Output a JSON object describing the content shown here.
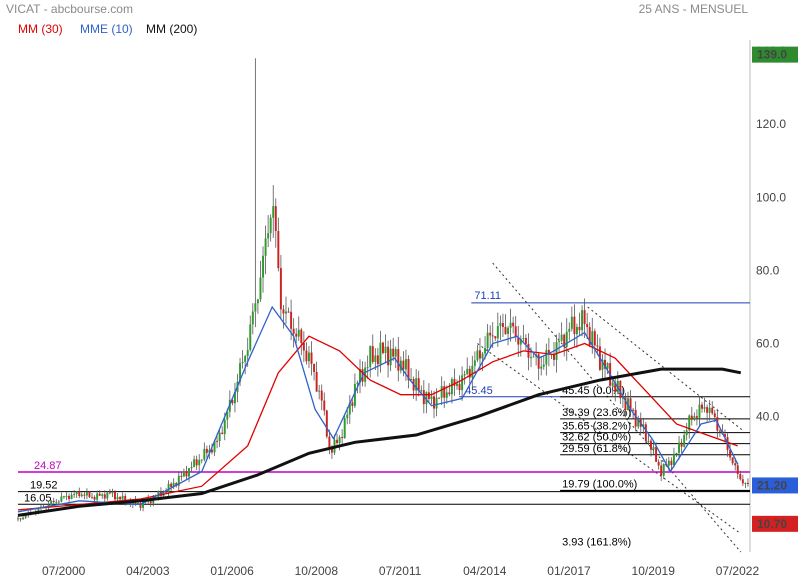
{
  "header": {
    "title_left": "VICAT - abcbourse.com",
    "title_right": "25 ANS - MENSUEL"
  },
  "legend": [
    {
      "label": "MM (30)",
      "color": "#e00000"
    },
    {
      "label": "MME (10)",
      "color": "#2f62c9"
    },
    {
      "label": "MM (200)",
      "color": "#111111"
    }
  ],
  "chart_data": {
    "type": "candlestick",
    "title": "VICAT - abcbourse.com",
    "subtitle": "25 ANS - MENSUEL",
    "x_ticks": [
      "07/2000",
      "04/2003",
      "01/2006",
      "10/2008",
      "07/2011",
      "04/2014",
      "01/2017",
      "10/2019",
      "07/2022"
    ],
    "y_ticks": [
      140,
      120,
      100,
      80,
      60,
      40
    ],
    "ylim": [
      3,
      143
    ],
    "price_tags": [
      {
        "value": "139.0",
        "color": "#2e8b2e"
      },
      {
        "value": "21.20",
        "color": "#2b5fd9"
      },
      {
        "value": "10.70",
        "color": "#d42020"
      }
    ],
    "levels": [
      {
        "label": "71.11",
        "value": 71.11,
        "color": "#1f3fb5"
      },
      {
        "label": "45.45",
        "value": 45.45,
        "color": "#1f3fb5"
      },
      {
        "label": "24.87",
        "value": 24.87,
        "color": "#c000c0"
      },
      {
        "label": "19.52",
        "value": 19.52,
        "color": "#000000"
      },
      {
        "label": "16.05",
        "value": 16.05,
        "color": "#000000"
      }
    ],
    "fibonacci": [
      {
        "label": "45.45  (0.0%)",
        "value": 45.45
      },
      {
        "label": "39.39  (23.6%)",
        "value": 39.39
      },
      {
        "label": "35.65  (38.2%)",
        "value": 35.65
      },
      {
        "label": "32.62  (50.0%)",
        "value": 32.62
      },
      {
        "label": "29.59  (61.8%)",
        "value": 29.59
      },
      {
        "label": "19.79  (100.0%)",
        "value": 19.79
      },
      {
        "label": "3.93  (161.8%)",
        "value": 3.93
      }
    ],
    "series": [
      {
        "name": "MM (30)",
        "color": "#e00000",
        "points": [
          [
            1999.0,
            14.5
          ],
          [
            2001,
            16
          ],
          [
            2003,
            17.5
          ],
          [
            2005,
            21
          ],
          [
            2006.5,
            32
          ],
          [
            2007.5,
            52
          ],
          [
            2008.5,
            62
          ],
          [
            2009.5,
            58
          ],
          [
            2010.5,
            50
          ],
          [
            2011.5,
            46
          ],
          [
            2012.5,
            46
          ],
          [
            2013.5,
            50
          ],
          [
            2014.5,
            55
          ],
          [
            2015.5,
            58
          ],
          [
            2016.5,
            57
          ],
          [
            2017.5,
            60
          ],
          [
            2018.5,
            56
          ],
          [
            2019.5,
            47
          ],
          [
            2020.5,
            38
          ],
          [
            2021.5,
            35
          ],
          [
            2022.5,
            32
          ]
        ]
      },
      {
        "name": "MME (10)",
        "color": "#2f62c9",
        "points": [
          [
            1999.0,
            14
          ],
          [
            2001,
            17
          ],
          [
            2003,
            16
          ],
          [
            2005,
            25
          ],
          [
            2006.5,
            55
          ],
          [
            2007.3,
            70
          ],
          [
            2008,
            62
          ],
          [
            2008.7,
            42
          ],
          [
            2009.3,
            34
          ],
          [
            2010.3,
            52
          ],
          [
            2011.3,
            56
          ],
          [
            2011.8,
            50
          ],
          [
            2012.5,
            43
          ],
          [
            2013.5,
            45
          ],
          [
            2014.5,
            60
          ],
          [
            2015.3,
            62
          ],
          [
            2016,
            56
          ],
          [
            2016.5,
            58
          ],
          [
            2017.5,
            63
          ],
          [
            2018.3,
            52
          ],
          [
            2019,
            42
          ],
          [
            2019.7,
            34
          ],
          [
            2020.3,
            25
          ],
          [
            2021.3,
            38
          ],
          [
            2021.8,
            39
          ],
          [
            2022.5,
            27
          ]
        ]
      },
      {
        "name": "MM (200)",
        "color": "#111111",
        "points": [
          [
            1999.0,
            13
          ],
          [
            2001,
            15.5
          ],
          [
            2003,
            17
          ],
          [
            2005,
            19
          ],
          [
            2006.8,
            24
          ],
          [
            2008.5,
            30
          ],
          [
            2010,
            33
          ],
          [
            2012,
            35
          ],
          [
            2014,
            40
          ],
          [
            2016,
            46
          ],
          [
            2018,
            50
          ],
          [
            2020,
            53
          ],
          [
            2022,
            53
          ],
          [
            2022.6,
            52
          ]
        ]
      }
    ],
    "candles_sampled": [
      [
        1999.0,
        12
      ],
      [
        1999.5,
        14
      ],
      [
        2000,
        16
      ],
      [
        2000.5,
        18
      ],
      [
        2001,
        19
      ],
      [
        2001.5,
        18
      ],
      [
        2002,
        19
      ],
      [
        2002.5,
        17
      ],
      [
        2003,
        16
      ],
      [
        2003.5,
        18
      ],
      [
        2004,
        21
      ],
      [
        2004.5,
        25
      ],
      [
        2005,
        29
      ],
      [
        2005.5,
        33
      ],
      [
        2006,
        45
      ],
      [
        2006.5,
        60
      ],
      [
        2007,
        82
      ],
      [
        2007.3,
        100
      ],
      [
        2007.6,
        70
      ],
      [
        2008,
        64
      ],
      [
        2008.5,
        56
      ],
      [
        2008.9,
        45
      ],
      [
        2009.2,
        30
      ],
      [
        2009.6,
        36
      ],
      [
        2010,
        48
      ],
      [
        2010.5,
        56
      ],
      [
        2011,
        58
      ],
      [
        2011.5,
        55
      ],
      [
        2012,
        48
      ],
      [
        2012.5,
        44
      ],
      [
        2013,
        47
      ],
      [
        2013.5,
        50
      ],
      [
        2014,
        56
      ],
      [
        2014.5,
        63
      ],
      [
        2015,
        65
      ],
      [
        2015.5,
        60
      ],
      [
        2016,
        54
      ],
      [
        2016.5,
        58
      ],
      [
        2017,
        64
      ],
      [
        2017.5,
        66
      ],
      [
        2018,
        56
      ],
      [
        2018.5,
        48
      ],
      [
        2019,
        42
      ],
      [
        2019.5,
        35
      ],
      [
        2020,
        25
      ],
      [
        2020.5,
        30
      ],
      [
        2021,
        40
      ],
      [
        2021.5,
        43
      ],
      [
        2022,
        35
      ],
      [
        2022.5,
        24
      ],
      [
        2022.8,
        21.2
      ]
    ]
  }
}
